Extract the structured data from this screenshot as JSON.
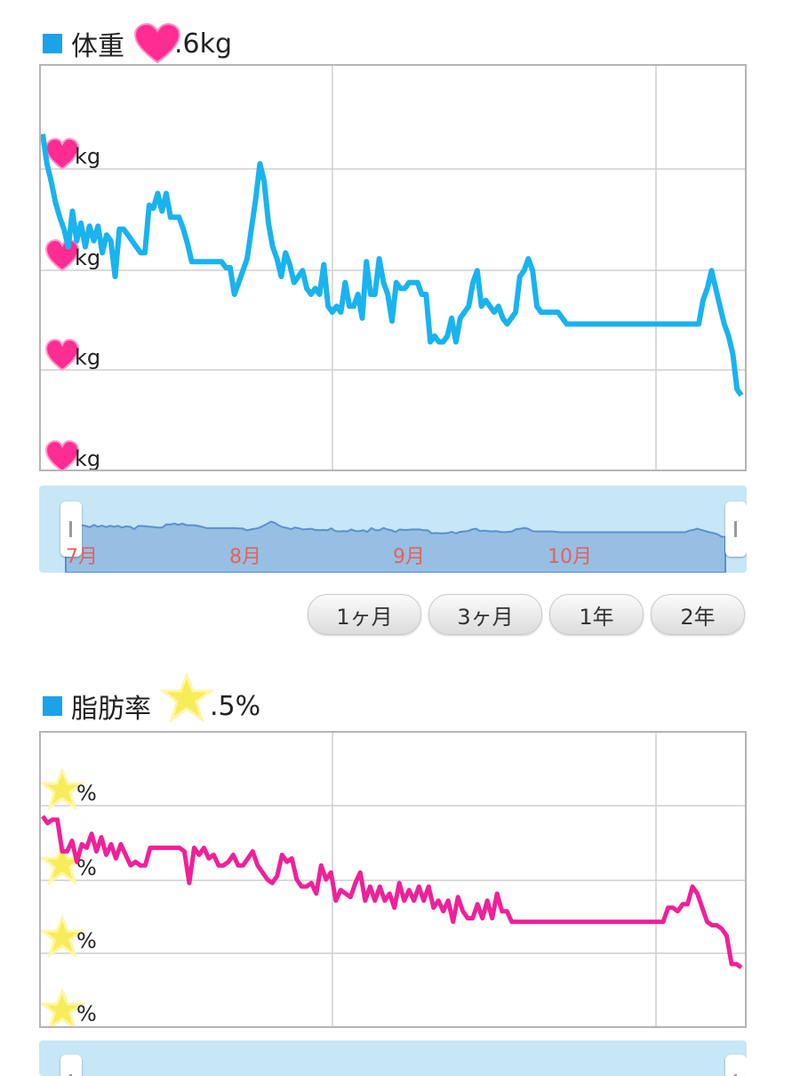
{
  "weight": {
    "title": "体重",
    "value_text": ".6kg",
    "y_tick_labels": [
      "kg",
      "kg",
      "kg",
      "kg"
    ],
    "line_color": "#19b3ef",
    "chart_data": {
      "type": "line",
      "title": "体重",
      "ylim": [
        0,
        100
      ],
      "series": [
        {
          "values": [
            98,
            88,
            82,
            75,
            70,
            66,
            60,
            72,
            62,
            68,
            60,
            67,
            62,
            67,
            58,
            64,
            62,
            50,
            66,
            66,
            64,
            62,
            60,
            58,
            58,
            74,
            73,
            78,
            72,
            78,
            70,
            70,
            70,
            66,
            61,
            55,
            55,
            55,
            55,
            55,
            55,
            55,
            55,
            53,
            53,
            44,
            48,
            52,
            56,
            66,
            76,
            88,
            82,
            68,
            60,
            56,
            50,
            58,
            54,
            48,
            50,
            52,
            46,
            44,
            46,
            44,
            54,
            40,
            38,
            40,
            38,
            48,
            40,
            40,
            44,
            36,
            55,
            44,
            44,
            56,
            48,
            44,
            35,
            48,
            46,
            46,
            48,
            48,
            48,
            44,
            44,
            28,
            30,
            28,
            28,
            30,
            36,
            28,
            36,
            38,
            40,
            48,
            52,
            40,
            42,
            40,
            38,
            40,
            36,
            34,
            36,
            38,
            50,
            52,
            56,
            52,
            40,
            38,
            38,
            38,
            38,
            38,
            36,
            34,
            34,
            34,
            34,
            34,
            34,
            34,
            34,
            34,
            34,
            34,
            34,
            34,
            34,
            34,
            34,
            34,
            34,
            34,
            34,
            34,
            34,
            34,
            34,
            34,
            34,
            34,
            34,
            34,
            34,
            34,
            34,
            42,
            46,
            52,
            46,
            40,
            34,
            30,
            24,
            12,
            10
          ],
          "n_points_note": "values on a 0-100 relative scale"
        }
      ]
    }
  },
  "navigator": {
    "month_labels": [
      "7月",
      "8月",
      "9月",
      "10月"
    ],
    "label_color": "#e8605a"
  },
  "range_buttons": [
    "1ヶ月",
    "3ヶ月",
    "1年",
    "2年"
  ],
  "fat": {
    "title": "脂肪率",
    "value_text": ".5%",
    "y_tick_labels": [
      "%",
      "%",
      "%",
      "%"
    ],
    "line_color": "#f0209a",
    "chart_data": {
      "type": "line",
      "title": "脂肪率",
      "ylim": [
        0,
        100
      ],
      "series": [
        {
          "values": [
            88,
            84,
            86,
            86,
            68,
            68,
            74,
            62,
            72,
            70,
            78,
            68,
            76,
            66,
            72,
            64,
            72,
            66,
            60,
            62,
            60,
            60,
            70,
            70,
            70,
            70,
            70,
            70,
            70,
            68,
            50,
            70,
            66,
            70,
            64,
            66,
            60,
            60,
            62,
            66,
            60,
            60,
            64,
            68,
            60,
            56,
            52,
            50,
            54,
            66,
            62,
            64,
            52,
            48,
            48,
            50,
            44,
            60,
            52,
            56,
            40,
            46,
            44,
            42,
            50,
            56,
            40,
            48,
            40,
            48,
            40,
            44,
            36,
            50,
            40,
            46,
            40,
            48,
            40,
            48,
            36,
            40,
            34,
            40,
            28,
            42,
            34,
            30,
            30,
            38,
            30,
            40,
            30,
            44,
            34,
            34,
            28,
            28,
            28,
            28,
            28,
            28,
            28,
            28,
            28,
            28,
            28,
            28,
            28,
            28,
            28,
            28,
            28,
            28,
            28,
            28,
            28,
            28,
            28,
            28,
            28,
            28,
            28,
            28,
            28,
            28,
            28,
            28,
            36,
            36,
            34,
            38,
            38,
            48,
            44,
            36,
            28,
            26,
            26,
            24,
            20,
            4,
            4,
            2
          ],
          "n_points_note": "values on a 0-100 relative scale"
        }
      ]
    }
  }
}
